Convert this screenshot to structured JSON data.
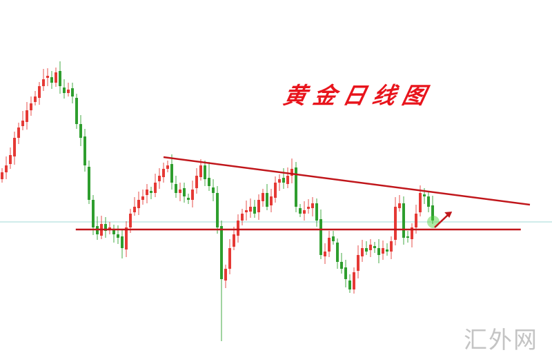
{
  "chart_data": {
    "type": "candlestick",
    "title": "黄金日线图",
    "watermark": "汇外网",
    "colors": {
      "up": "#e53935",
      "down": "#2e9e2e",
      "trendline": "#c0161b",
      "support": "#c0161b",
      "reference_line": "#9fd9d6",
      "arrow": "#c0161b",
      "glow": "#4cd13a"
    },
    "close": [
      270,
      280,
      295,
      320,
      335,
      345,
      360,
      370,
      380,
      395,
      405,
      410,
      400,
      415,
      395,
      385,
      390,
      380,
      340,
      320,
      280,
      230,
      190,
      180,
      195,
      185,
      190,
      180,
      175,
      160,
      190,
      210,
      220,
      230,
      235,
      245,
      240,
      255,
      265,
      275,
      280,
      255,
      240,
      245,
      235,
      230,
      245,
      265,
      280,
      260,
      250,
      240,
      190,
      115,
      130,
      160,
      180,
      200,
      210,
      215,
      220,
      210,
      230,
      240,
      220,
      235,
      255,
      260,
      255,
      265,
      275,
      220,
      210,
      215,
      220,
      225,
      200,
      150,
      155,
      175,
      170,
      140,
      130,
      115,
      100,
      125,
      150,
      160,
      155,
      165,
      160,
      150,
      160,
      155,
      170,
      220,
      225,
      175,
      175,
      190,
      210,
      240,
      235,
      220,
      200
    ],
    "low_overrides": {
      "53": 25,
      "29": 145,
      "84": 95
    },
    "high_overrides": {
      "10": 420,
      "50": 285,
      "70": 290
    },
    "trendlines": [
      {
        "kind": "resistance",
        "from": {
          "candle": 39,
          "price": 292
        },
        "to": {
          "candle": 127.5,
          "price": 223
        }
      },
      {
        "kind": "support",
        "from": {
          "candle": 17.8,
          "price": 187
        },
        "to": {
          "candle": 125.3,
          "price": 187
        }
      }
    ],
    "reference_price": 198,
    "arrow": {
      "from": {
        "candle": 104.5,
        "price": 190
      },
      "to": {
        "candle": 108.7,
        "price": 213
      }
    },
    "axes": "none",
    "grid": false
  }
}
